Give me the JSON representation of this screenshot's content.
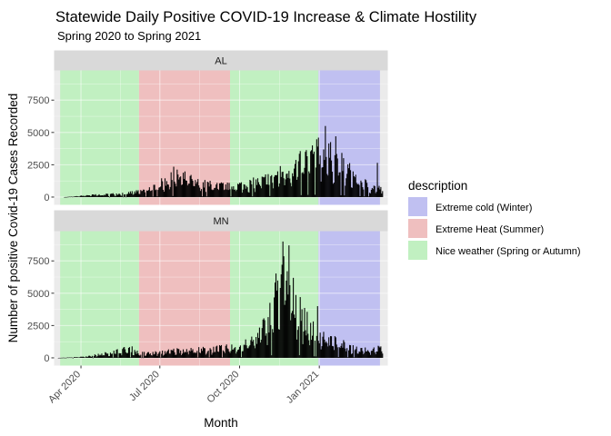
{
  "chart_data": {
    "type": "bar",
    "title": "Statewide Daily Positive COVID-19 Increase & Climate Hostility",
    "subtitle": "Spring 2020 to Spring 2021",
    "xlabel": "Month",
    "ylabel": "Number of positive Covid-19 Cases Recorded",
    "x_ticks": [
      "Apr 2020",
      "Jul 2020",
      "Oct 2020",
      "Jan 2021"
    ],
    "x_tick_dates": [
      "2020-04-01",
      "2020-07-01",
      "2020-10-01",
      "2021-01-01"
    ],
    "xlim": [
      "2020-03-01",
      "2021-03-21"
    ],
    "ylim": [
      -600,
      9800
    ],
    "y_ticks": [
      0,
      2500,
      5000,
      7500
    ],
    "y_tick_labels": [
      "0",
      "2500",
      "5000",
      "7500"
    ],
    "grid": true,
    "legend": {
      "title": "description",
      "position": "right",
      "entries": [
        {
          "label": "Extreme cold (Winter)",
          "color": "#c0c0f1"
        },
        {
          "label": "Extreme Heat (Summer)",
          "color": "#efbfbf"
        },
        {
          "label": "Nice weather (Spring or Autumn)",
          "color": "#c1f0c1"
        }
      ]
    },
    "season_bands": [
      {
        "start": "2020-03-08",
        "end": "2020-06-07",
        "description": "Nice weather (Spring or Autumn)",
        "color": "#c1f0c1"
      },
      {
        "start": "2020-06-07",
        "end": "2020-09-20",
        "description": "Extreme Heat (Summer)",
        "color": "#efbfbf"
      },
      {
        "start": "2020-09-20",
        "end": "2020-12-31",
        "description": "Nice weather (Spring or Autumn)",
        "color": "#c1f0c1"
      },
      {
        "start": "2020-12-31",
        "end": "2021-03-12",
        "description": "Extreme cold (Winter)",
        "color": "#c0c0f1"
      }
    ],
    "panels": [
      {
        "name": "AL",
        "series_start": "2020-03-13",
        "series_end": "2021-03-15",
        "profile": [
          [
            "2020-03-13",
            0
          ],
          [
            "2020-03-25",
            50
          ],
          [
            "2020-04-10",
            160
          ],
          [
            "2020-05-01",
            220
          ],
          [
            "2020-05-20",
            320
          ],
          [
            "2020-06-07",
            450
          ],
          [
            "2020-06-25",
            900
          ],
          [
            "2020-07-10",
            1400
          ],
          [
            "2020-07-20",
            1750
          ],
          [
            "2020-08-01",
            1600
          ],
          [
            "2020-08-15",
            1150
          ],
          [
            "2020-09-01",
            1000
          ],
          [
            "2020-09-20",
            900
          ],
          [
            "2020-10-10",
            1100
          ],
          [
            "2020-10-25",
            1350
          ],
          [
            "2020-11-10",
            1800
          ],
          [
            "2020-11-25",
            2200
          ],
          [
            "2020-12-10",
            2900
          ],
          [
            "2020-12-20",
            3400
          ],
          [
            "2021-01-05",
            3800
          ],
          [
            "2021-01-15",
            3400
          ],
          [
            "2021-01-30",
            2600
          ],
          [
            "2021-02-15",
            1500
          ],
          [
            "2021-03-01",
            900
          ],
          [
            "2021-03-15",
            700
          ]
        ],
        "peaks": [
          [
            "2020-07-17",
            2350
          ],
          [
            "2020-12-31",
            4600
          ],
          [
            "2021-01-08",
            5500
          ],
          [
            "2021-01-20",
            4700
          ],
          [
            "2021-03-09",
            2650
          ]
        ]
      },
      {
        "name": "MN",
        "series_start": "2020-03-06",
        "series_end": "2021-03-15",
        "profile": [
          [
            "2020-03-06",
            0
          ],
          [
            "2020-03-20",
            40
          ],
          [
            "2020-04-05",
            100
          ],
          [
            "2020-04-25",
            300
          ],
          [
            "2020-05-15",
            600
          ],
          [
            "2020-05-28",
            800
          ],
          [
            "2020-06-07",
            400
          ],
          [
            "2020-06-20",
            380
          ],
          [
            "2020-07-05",
            500
          ],
          [
            "2020-07-25",
            680
          ],
          [
            "2020-08-15",
            680
          ],
          [
            "2020-09-10",
            800
          ],
          [
            "2020-09-25",
            900
          ],
          [
            "2020-10-10",
            1200
          ],
          [
            "2020-10-20",
            1700
          ],
          [
            "2020-10-30",
            2700
          ],
          [
            "2020-11-07",
            4000
          ],
          [
            "2020-11-13",
            5800
          ],
          [
            "2020-11-18",
            6800
          ],
          [
            "2020-11-22",
            7200
          ],
          [
            "2020-11-28",
            5600
          ],
          [
            "2020-12-05",
            4700
          ],
          [
            "2020-12-12",
            3600
          ],
          [
            "2020-12-20",
            2600
          ],
          [
            "2021-01-01",
            2000
          ],
          [
            "2021-01-12",
            1600
          ],
          [
            "2021-01-25",
            1200
          ],
          [
            "2021-02-10",
            850
          ],
          [
            "2021-03-01",
            700
          ],
          [
            "2021-03-15",
            800
          ]
        ],
        "peaks": [
          [
            "2020-11-20",
            9000
          ],
          [
            "2020-11-27",
            8700
          ],
          [
            "2020-12-10",
            4700
          ],
          [
            "2020-12-30",
            4000
          ]
        ]
      }
    ]
  }
}
